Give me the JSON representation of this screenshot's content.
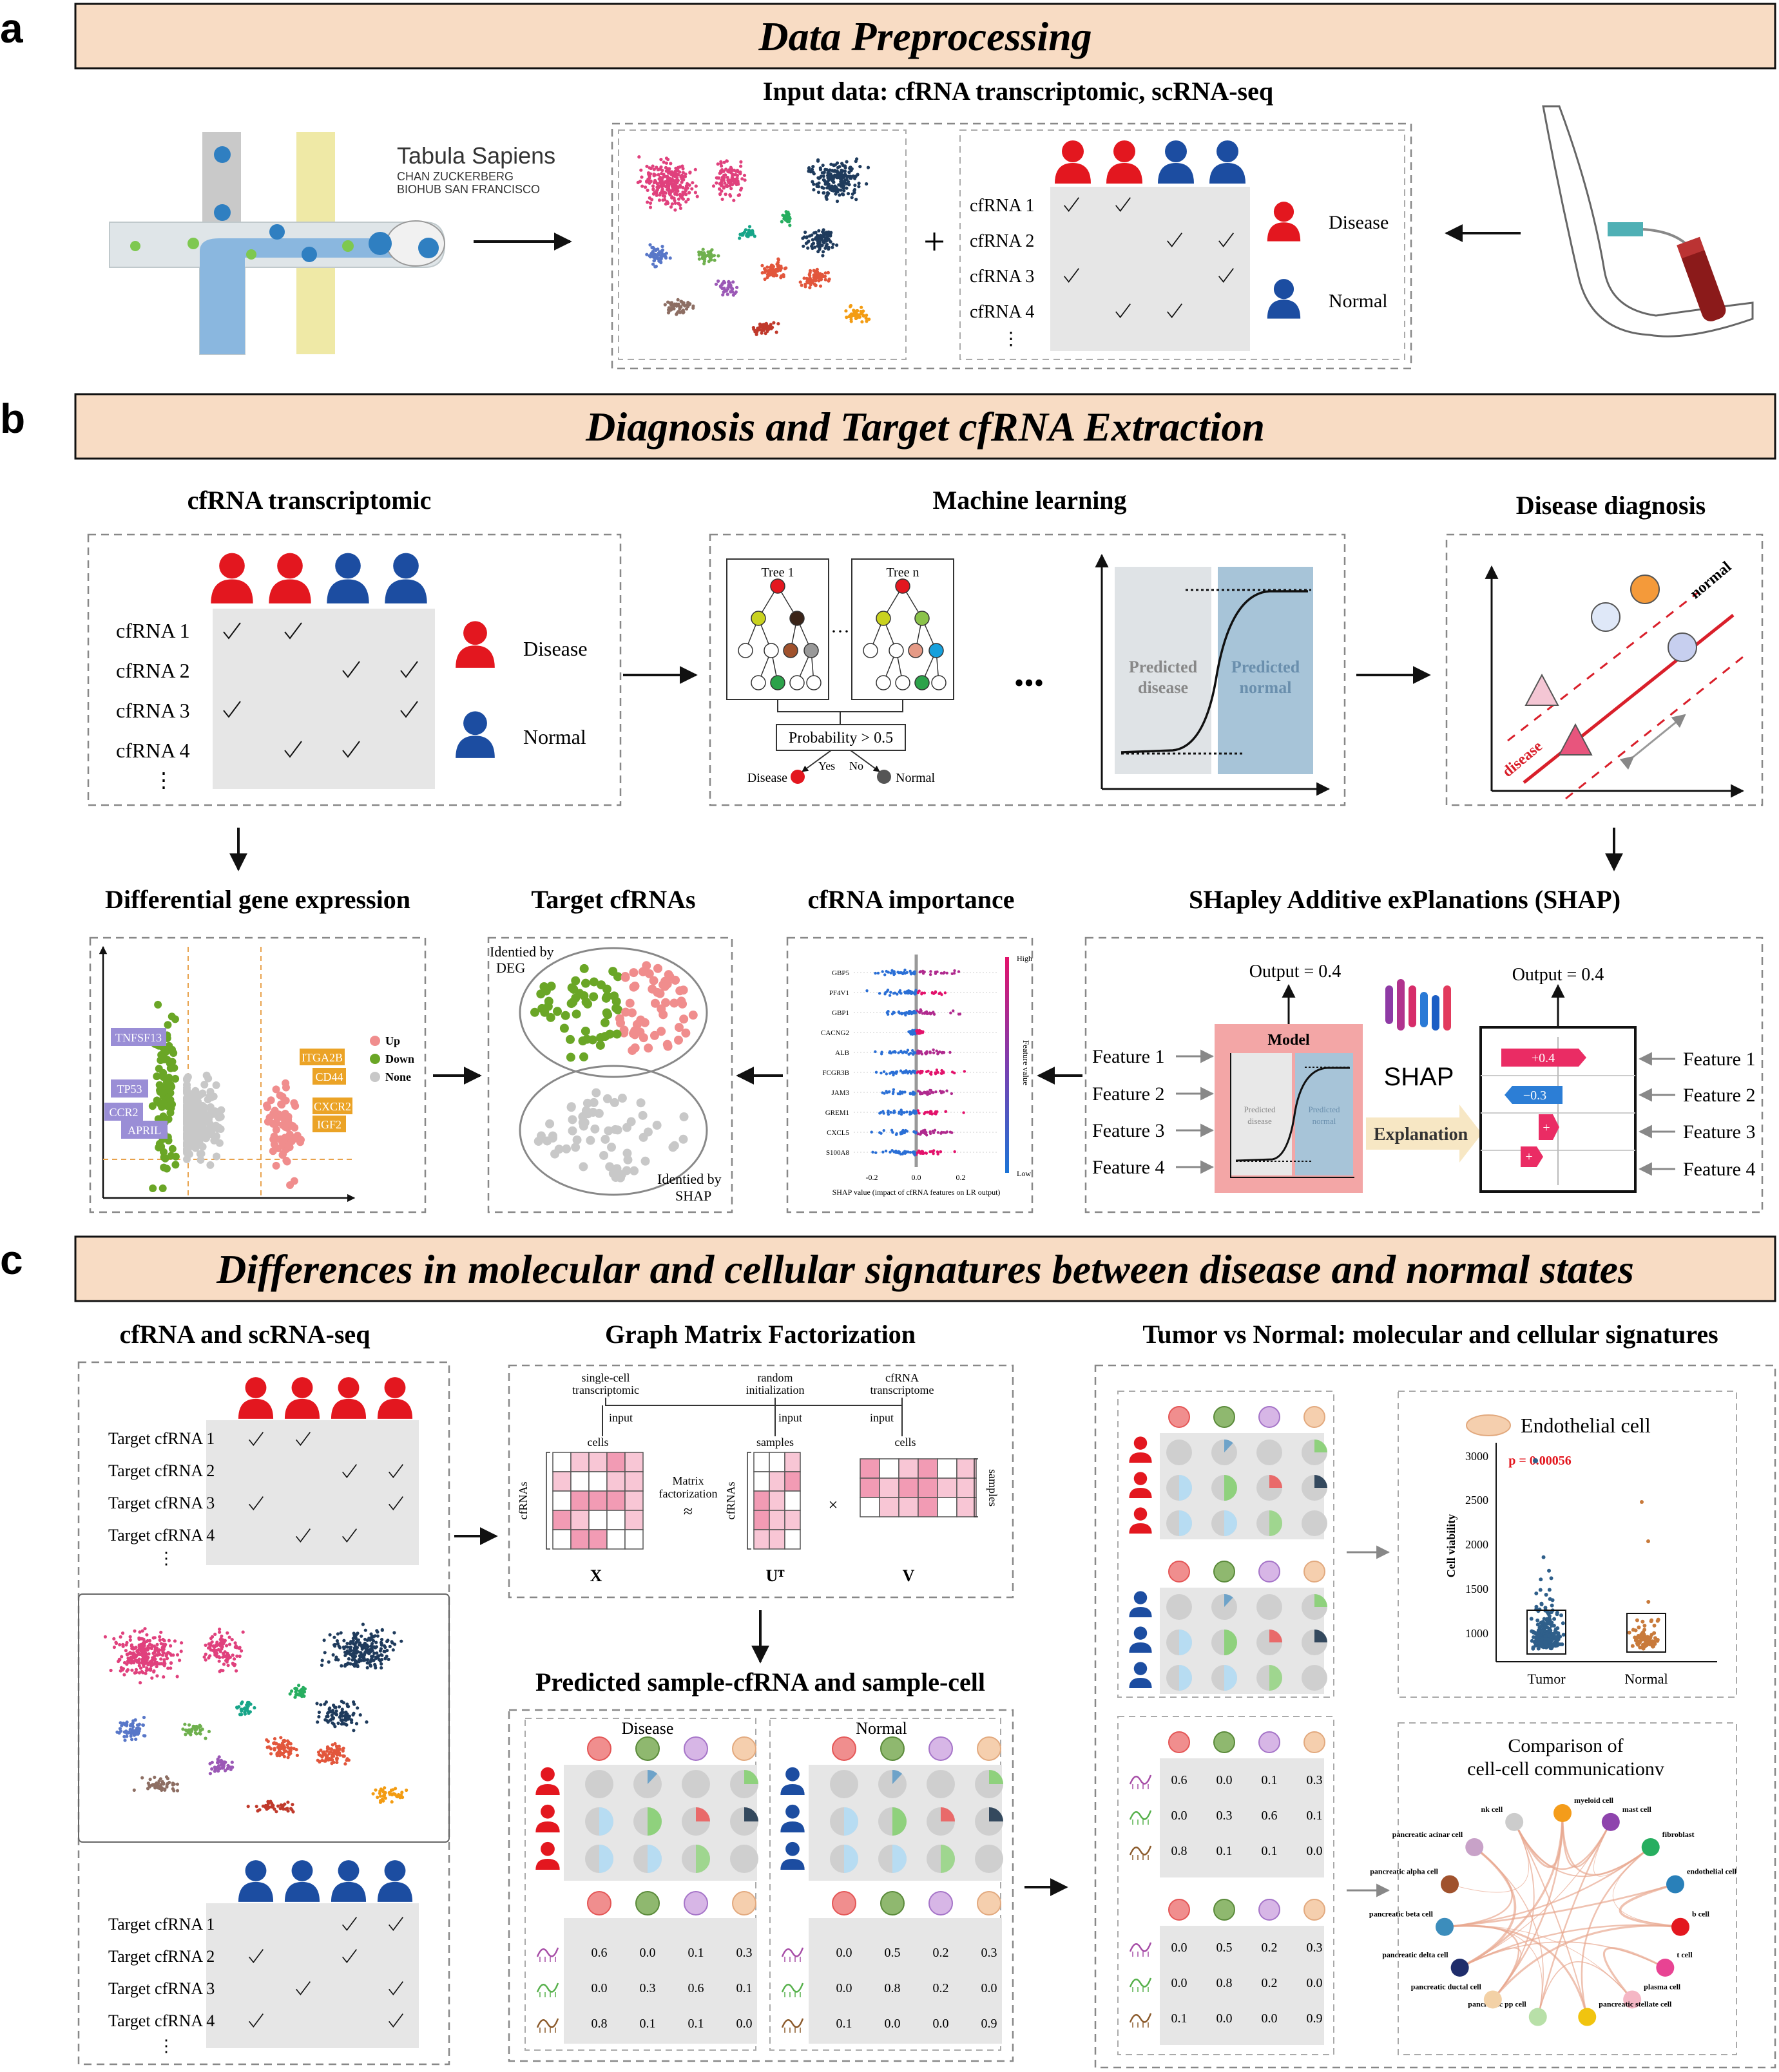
{
  "panel_letters": {
    "a": "a",
    "b": "b",
    "c": "c"
  },
  "banners": {
    "a": "Data Preprocessing",
    "b": "Diagnosis and Target cfRNA Extraction",
    "c": "Differences in molecular and cellular signatures between disease and normal states"
  },
  "section_a": {
    "input_title": "Input data: cfRNA transcriptomic, scRNA-seq",
    "tabula_title": "Tabula Sapiens",
    "tabula_sub1": "CHAN ZUCKERBERG",
    "tabula_sub2": "BIOHUB SAN FRANCISCO",
    "plus": "+",
    "rows": [
      "cfRNA 1",
      "cfRNA 2",
      "cfRNA 3",
      "cfRNA 4"
    ],
    "ellipsis": "⋮",
    "legend_disease": "Disease",
    "legend_normal": "Normal"
  },
  "section_b": {
    "cfrna_title": "cfRNA transcriptomic",
    "ml_title": "Machine learning",
    "diag_title": "Disease diagnosis",
    "rows": [
      "cfRNA 1",
      "cfRNA 2",
      "cfRNA 3",
      "cfRNA 4"
    ],
    "ellipsis": "⋮",
    "legend_disease": "Disease",
    "legend_normal": "Normal",
    "tree1": "Tree 1",
    "treen": "Tree n",
    "dots_small": "···",
    "dots_big": "•••",
    "prob": "Probability > 0.5",
    "yes": "Yes",
    "no": "No",
    "out_disease": "Disease",
    "out_normal": "Normal",
    "pred_disease_1": "Predicted",
    "pred_disease_2": "disease",
    "pred_normal_1": "Predicted",
    "pred_normal_2": "normal",
    "svm_normal": "normal",
    "svm_disease": "disease",
    "deg_title": "Differential gene expression",
    "target_title": "Target cfRNAs",
    "importance_title": "cfRNA importance",
    "shap_title": "SHapley Additive exPlanations (SHAP)",
    "deg_genes_left": [
      "TNFSF13",
      "TP53",
      "CCR2",
      "APRIL"
    ],
    "deg_genes_right": [
      "ITGA2B",
      "CD44",
      "CXCR2",
      "IGF2"
    ],
    "deg_legend": [
      "Up",
      "Down",
      "None"
    ],
    "venn_top_1": "Identied by",
    "venn_top_2": "DEG",
    "venn_bot_1": "Identied by",
    "venn_bot_2": "SHAP",
    "imp_genes": [
      "GBP5",
      "PF4V1",
      "GBP1",
      "CACNG2",
      "ALB",
      "FCGR3B",
      "JAM3",
      "GREM1",
      "CXCL5",
      "S100A8"
    ],
    "imp_high": "High",
    "imp_low": "Low",
    "imp_feature_value": "Feature value",
    "imp_ticks": [
      "-0.2",
      "0.0",
      "0.2"
    ],
    "imp_xlabel": "SHAP value (impact of cfRNA features on LR output)",
    "shap_features": [
      "Feature 1",
      "Feature 2",
      "Feature 3",
      "Feature 4"
    ],
    "shap_output": "Output = 0.4",
    "shap_model": "Model",
    "shap_logo": "SHAP",
    "shap_explanation": "Explanation",
    "shap_pred_disease_1": "Predicted",
    "shap_pred_disease_2": "disease",
    "shap_pred_normal_1": "Predicted",
    "shap_pred_normal_2": "normal",
    "shap_bar_labels": [
      "+0.4",
      "−0.3",
      "+",
      "+"
    ]
  },
  "section_c": {
    "cf_title": "cfRNA and scRNA-seq",
    "gmf_title": "Graph Matrix Factorization",
    "tvn_title": "Tumor vs Normal: molecular and cellular signatures",
    "target_rows": [
      "Target cfRNA 1",
      "Target cfRNA 2",
      "Target cfRNA 3",
      "Target cfRNA 4"
    ],
    "ellipsis": "⋮",
    "gmf_top": [
      "single-cell",
      "transcriptomic",
      "random",
      "initialization",
      "cfRNA",
      "transcriptome"
    ],
    "gmf_input": "input",
    "gmf_cells": "cells",
    "gmf_samples": "samples",
    "gmf_cfrnas": "cfRNAs",
    "gmf_factorization_1": "Matrix",
    "gmf_factorization_2": "factorization",
    "gmf_approx": "≈",
    "gmf_times": "×",
    "gmf_X": "X",
    "gmf_UT": "Uᵀ",
    "gmf_V": "V",
    "pred_title": "Predicted sample-cfRNA and sample-cell",
    "pred_disease": "Disease",
    "pred_normal": "Normal",
    "disease_values": [
      [
        "0.6",
        "0.0",
        "0.1",
        "0.3"
      ],
      [
        "0.0",
        "0.3",
        "0.6",
        "0.1"
      ],
      [
        "0.8",
        "0.1",
        "0.1",
        "0.0"
      ]
    ],
    "normal_values": [
      [
        "0.0",
        "0.5",
        "0.2",
        "0.3"
      ],
      [
        "0.0",
        "0.8",
        "0.2",
        "0.0"
      ],
      [
        "0.1",
        "0.0",
        "0.0",
        "0.9"
      ]
    ],
    "endo_title": "Endothelial cell",
    "endo_p": "p = 0.00056",
    "endo_ylabel": "Cell viability",
    "endo_yticks": [
      "3000",
      "2500",
      "2000",
      "1500",
      "1000"
    ],
    "endo_groups": [
      "Tumor",
      "Normal"
    ],
    "comm_title_1": "Comparison of",
    "comm_title_2": "cell-cell communicationv",
    "comm_nodes": [
      "myeloid cell",
      "mast cell",
      "fibroblast",
      "endothelial cell",
      "b cell",
      "t cell",
      "plasma cell",
      "pancreatic stellate cell",
      "pancreatic pp cell",
      "pancreatic ductal cell",
      "pancreatic delta cell",
      "pancreatic beta cell",
      "pancreatic alpha cell",
      "pancreatic acinar cell",
      "nk cell"
    ]
  },
  "colors": {
    "banner_fill": "#f8dcc4",
    "disease_red": "#e3171f",
    "normal_blue": "#1c4da1",
    "pink_shade": "#f5a3a3",
    "blue_shade": "#6ea3c9"
  }
}
